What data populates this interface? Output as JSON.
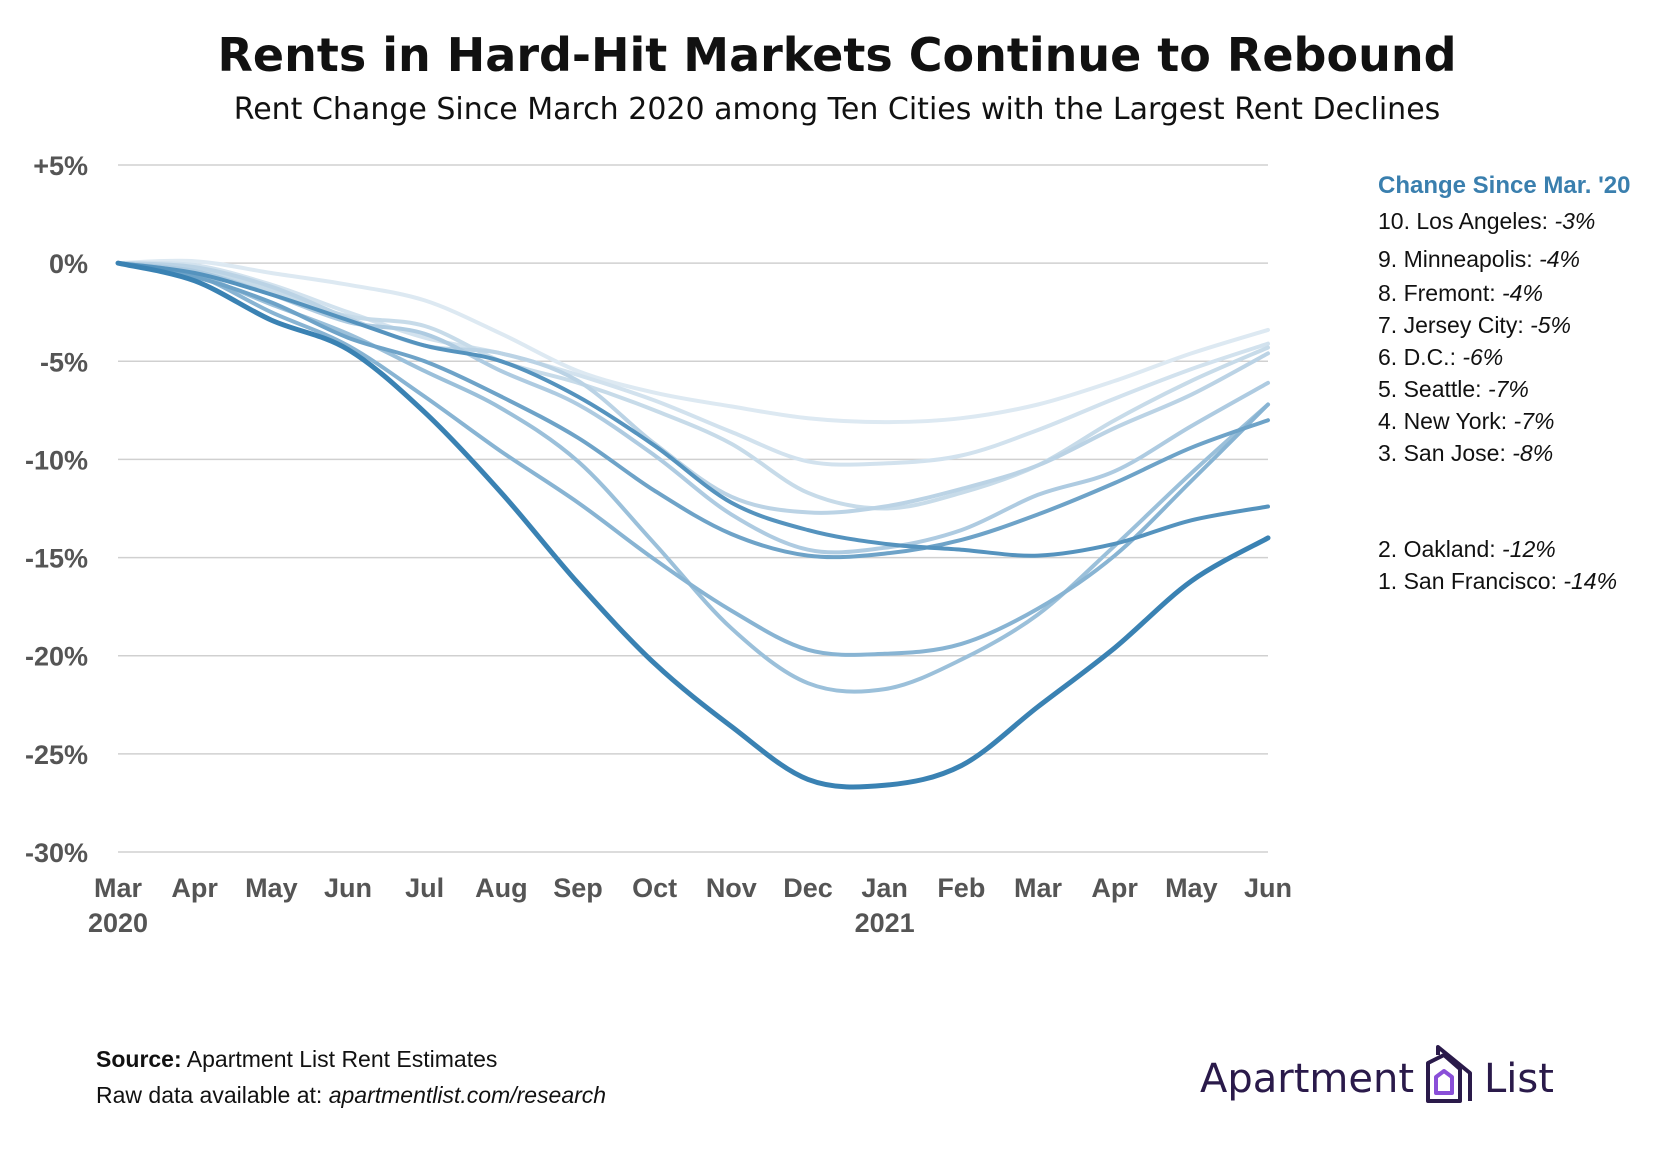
{
  "header": {
    "title": "Rents in Hard-Hit Markets Continue to Rebound",
    "subtitle": "Rent Change Since March 2020 among Ten Cities with the Largest Rent Declines"
  },
  "legend": {
    "title": "Change Since Mar. '20",
    "items": [
      {
        "label": "10. Los Angeles:",
        "value": "-3%"
      },
      {
        "label": "9. Minneapolis:",
        "value": "-4%"
      },
      {
        "label": "8. Fremont:",
        "value": "-4%"
      },
      {
        "label": "7. Jersey City:",
        "value": "-5%"
      },
      {
        "label": "6. D.C.:",
        "value": "-6%"
      },
      {
        "label": "5. Seattle:",
        "value": "-7%"
      },
      {
        "label": "4. New York:",
        "value": "-7%"
      },
      {
        "label": "3. San Jose:",
        "value": "-8%"
      },
      {
        "label": "2. Oakland:",
        "value": "-12%"
      },
      {
        "label": "1. San Francisco:",
        "value": "-14%"
      }
    ]
  },
  "footer": {
    "source_label": "Source:",
    "source_text": "Apartment List Rent Estimates",
    "raw_label": "Raw data available at:",
    "raw_url": "apartmentlist.com/research",
    "logo_left": "Apartment",
    "logo_right": "List"
  },
  "chart_data": {
    "type": "line",
    "title": "Rents in Hard-Hit Markets Continue to Rebound",
    "subtitle": "Rent Change Since March 2020 among Ten Cities with the Largest Rent Declines",
    "xlabel": "",
    "ylabel": "",
    "x": [
      "Mar",
      "Apr",
      "May",
      "Jun",
      "Jul",
      "Aug",
      "Sep",
      "Oct",
      "Nov",
      "Dec",
      "Jan",
      "Feb",
      "Mar",
      "Apr",
      "May",
      "Jun"
    ],
    "x_year_labels": [
      {
        "index": 0,
        "label": "2020"
      },
      {
        "index": 10,
        "label": "2021"
      }
    ],
    "y_ticks": [
      "+5%",
      "0%",
      "-5%",
      "-10%",
      "-15%",
      "-20%",
      "-25%",
      "-30%"
    ],
    "ylim": [
      -30,
      5
    ],
    "grid": true,
    "legend_position": "right",
    "series": [
      {
        "name": "Los Angeles",
        "color": "#dde9f2",
        "values": [
          0,
          0.1,
          -0.5,
          -1.1,
          -1.9,
          -3.6,
          -5.5,
          -6.6,
          -7.3,
          -7.9,
          -8.1,
          -7.9,
          -7.2,
          -6.0,
          -4.6,
          -3.4
        ]
      },
      {
        "name": "Minneapolis",
        "color": "#d2e2ee",
        "values": [
          0,
          -0.1,
          -1.1,
          -2.5,
          -3.8,
          -4.6,
          -5.7,
          -7.0,
          -8.6,
          -10.1,
          -10.2,
          -9.8,
          -8.5,
          -6.9,
          -5.4,
          -4.1
        ]
      },
      {
        "name": "Fremont",
        "color": "#c7dbe9",
        "values": [
          0,
          -0.3,
          -1.4,
          -2.7,
          -3.2,
          -5.0,
          -6.1,
          -7.5,
          -9.2,
          -11.7,
          -12.5,
          -11.7,
          -10.3,
          -8.0,
          -6.0,
          -4.3
        ]
      },
      {
        "name": "Jersey City",
        "color": "#bbd3e5",
        "values": [
          0,
          -0.2,
          -1.2,
          -2.8,
          -4.2,
          -4.6,
          -6.0,
          -9.2,
          -11.9,
          -12.7,
          -12.4,
          -11.5,
          -10.3,
          -8.4,
          -6.7,
          -4.6
        ]
      },
      {
        "name": "D.C.",
        "color": "#aecbe1",
        "values": [
          0,
          -0.4,
          -1.6,
          -3.0,
          -3.6,
          -5.5,
          -7.2,
          -9.8,
          -12.8,
          -14.6,
          -14.5,
          -13.6,
          -11.8,
          -10.6,
          -8.3,
          -6.1
        ]
      },
      {
        "name": "Seattle",
        "color": "#9bc0da",
        "values": [
          0,
          -0.6,
          -2.1,
          -3.6,
          -5.5,
          -7.4,
          -10.1,
          -14.3,
          -18.6,
          -21.4,
          -21.7,
          -20.2,
          -17.9,
          -14.4,
          -10.7,
          -7.2
        ]
      },
      {
        "name": "New York",
        "color": "#88b4d3",
        "values": [
          0,
          -0.6,
          -2.5,
          -4.2,
          -6.8,
          -9.6,
          -12.2,
          -15.1,
          -17.7,
          -19.7,
          -19.9,
          -19.4,
          -17.6,
          -14.9,
          -11.1,
          -7.2
        ]
      },
      {
        "name": "San Jose",
        "color": "#6ea3c8",
        "values": [
          0,
          -0.7,
          -2.0,
          -3.8,
          -5.0,
          -6.8,
          -8.9,
          -11.6,
          -13.8,
          -14.9,
          -14.8,
          -14.1,
          -12.8,
          -11.2,
          -9.4,
          -8.0
        ]
      },
      {
        "name": "Oakland",
        "color": "#5593be",
        "values": [
          0,
          -0.5,
          -1.6,
          -2.9,
          -4.2,
          -5.0,
          -6.8,
          -9.3,
          -12.2,
          -13.6,
          -14.3,
          -14.6,
          -14.9,
          -14.3,
          -13.1,
          -12.4
        ]
      },
      {
        "name": "San Francisco",
        "color": "#3a82b3",
        "values": [
          0,
          -0.9,
          -2.9,
          -4.4,
          -7.6,
          -11.7,
          -16.3,
          -20.4,
          -23.6,
          -26.3,
          -26.6,
          -25.6,
          -22.6,
          -19.6,
          -16.2,
          -14.0
        ]
      }
    ]
  }
}
